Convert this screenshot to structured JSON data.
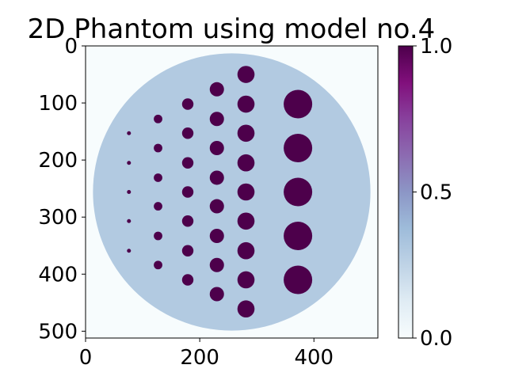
{
  "chart_data": {
    "type": "heatmap",
    "title": "2D Phantom using model no.4",
    "xlabel": "",
    "ylabel": "",
    "xlim": [
      0,
      512
    ],
    "ylim": [
      512,
      0
    ],
    "x_ticks": [
      "0",
      "200",
      "400"
    ],
    "y_ticks": [
      "0",
      "100",
      "200",
      "300",
      "400",
      "500"
    ],
    "colormap": "BuPu",
    "colorbar": {
      "range": [
        0.0,
        1.0
      ],
      "ticks": [
        "0.0",
        "0.5",
        "1.0"
      ],
      "colors": [
        "#f7fcfd",
        "#e0ecf4",
        "#bfd3e6",
        "#9ebcda",
        "#8c96c6",
        "#8c6bb1",
        "#88419d",
        "#810f7c",
        "#4d004b"
      ]
    },
    "background_value": 0.0,
    "phantom": {
      "shape": "disk",
      "center": [
        256,
        256
      ],
      "radius": 243,
      "value": 0.3
    },
    "inserts_value": 1.0,
    "inserts": [
      {
        "column": 1,
        "x": 76,
        "y": [
          153,
          205,
          256,
          307,
          359
        ],
        "radius": 3.5
      },
      {
        "column": 2,
        "x": 127,
        "y": [
          128,
          179,
          231,
          281,
          333,
          384
        ],
        "radius": 7.5
      },
      {
        "column": 3,
        "x": 179,
        "y": [
          102,
          153,
          205,
          256,
          307,
          359,
          410
        ],
        "radius": 10
      },
      {
        "column": 4,
        "x": 230,
        "y": [
          76,
          128,
          179,
          231,
          281,
          333,
          384,
          435
        ],
        "radius": 12.5
      },
      {
        "column": 5,
        "x": 281,
        "y": [
          50,
          102,
          153,
          205,
          256,
          307,
          359,
          410,
          461
        ],
        "radius": 15
      },
      {
        "column": 6,
        "x": 372,
        "y": [
          102,
          179,
          256,
          333,
          410
        ],
        "radius": 25
      }
    ]
  }
}
